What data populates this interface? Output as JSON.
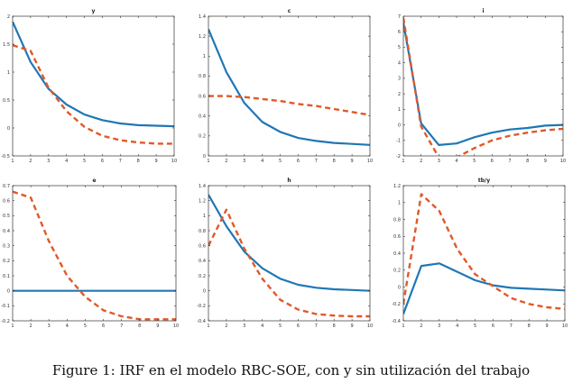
{
  "caption": "Figure 1: IRF en el modelo RBC-SOE, con y sin utilización del trabajo",
  "colors": {
    "solid": "#1f77b4",
    "dashed": "#e0592a",
    "axis": "#333333"
  },
  "chart_data": [
    {
      "type": "line",
      "title": "y",
      "x": [
        1,
        2,
        3,
        4,
        5,
        6,
        7,
        8,
        9,
        10
      ],
      "xticks": [
        1,
        2,
        3,
        4,
        5,
        6,
        7,
        8,
        9,
        10
      ],
      "ylim": [
        -0.5,
        2
      ],
      "yticks": [
        -0.5,
        0,
        0.5,
        1,
        1.5,
        2
      ],
      "series": [
        {
          "style": "solid",
          "values": [
            1.9,
            1.18,
            0.7,
            0.42,
            0.24,
            0.14,
            0.08,
            0.05,
            0.04,
            0.03
          ]
        },
        {
          "style": "dashed",
          "values": [
            1.48,
            1.38,
            0.72,
            0.3,
            0.02,
            -0.14,
            -0.22,
            -0.26,
            -0.28,
            -0.28
          ]
        }
      ]
    },
    {
      "type": "line",
      "title": "c",
      "x": [
        1,
        2,
        3,
        4,
        5,
        6,
        7,
        8,
        9,
        10
      ],
      "xticks": [
        1,
        2,
        3,
        4,
        5,
        6,
        7,
        8,
        9,
        10
      ],
      "ylim": [
        0,
        1.4
      ],
      "yticks": [
        0,
        0.2,
        0.4,
        0.6,
        0.8,
        1,
        1.2,
        1.4
      ],
      "series": [
        {
          "style": "solid",
          "values": [
            1.27,
            0.84,
            0.53,
            0.34,
            0.24,
            0.18,
            0.15,
            0.13,
            0.12,
            0.11
          ]
        },
        {
          "style": "dashed",
          "values": [
            0.6,
            0.6,
            0.59,
            0.57,
            0.55,
            0.52,
            0.5,
            0.47,
            0.44,
            0.41
          ]
        }
      ]
    },
    {
      "type": "line",
      "title": "i",
      "x": [
        1,
        2,
        3,
        4,
        5,
        6,
        7,
        8,
        9,
        10
      ],
      "xticks": [
        1,
        2,
        3,
        4,
        5,
        6,
        7,
        8,
        9,
        10
      ],
      "ylim": [
        -2,
        7
      ],
      "yticks": [
        -2,
        -1,
        0,
        1,
        2,
        3,
        4,
        5,
        6,
        7
      ],
      "series": [
        {
          "style": "solid",
          "values": [
            6.6,
            0.1,
            -1.3,
            -1.2,
            -0.8,
            -0.5,
            -0.3,
            -0.2,
            -0.05,
            0
          ]
        },
        {
          "style": "dashed",
          "values": [
            6.9,
            -0.1,
            -2.1,
            -2.1,
            -1.5,
            -1.0,
            -0.7,
            -0.5,
            -0.35,
            -0.25
          ]
        }
      ]
    },
    {
      "type": "line",
      "title": "e",
      "x": [
        1,
        2,
        3,
        4,
        5,
        6,
        7,
        8,
        9,
        10
      ],
      "xticks": [
        1,
        2,
        3,
        4,
        5,
        6,
        7,
        8,
        9,
        10
      ],
      "ylim": [
        -0.2,
        0.7
      ],
      "yticks": [
        -0.2,
        -0.1,
        0,
        0.1,
        0.2,
        0.3,
        0.4,
        0.5,
        0.6,
        0.7
      ],
      "series": [
        {
          "style": "solid",
          "values": [
            0,
            0,
            0,
            0,
            0,
            0,
            0,
            0,
            0,
            0
          ]
        },
        {
          "style": "dashed",
          "values": [
            0.66,
            0.62,
            0.33,
            0.1,
            -0.04,
            -0.13,
            -0.17,
            -0.19,
            -0.19,
            -0.19
          ]
        }
      ]
    },
    {
      "type": "line",
      "title": "h",
      "x": [
        1,
        2,
        3,
        4,
        5,
        6,
        7,
        8,
        9,
        10
      ],
      "xticks": [
        1,
        2,
        3,
        4,
        5,
        6,
        7,
        8,
        9,
        10
      ],
      "ylim": [
        -0.4,
        1.4
      ],
      "yticks": [
        -0.4,
        -0.2,
        0,
        0.2,
        0.4,
        0.6,
        0.8,
        1,
        1.2,
        1.4
      ],
      "series": [
        {
          "style": "solid",
          "values": [
            1.28,
            0.86,
            0.52,
            0.3,
            0.16,
            0.08,
            0.04,
            0.02,
            0.01,
            0.0
          ]
        },
        {
          "style": "dashed",
          "values": [
            0.6,
            1.08,
            0.56,
            0.16,
            -0.12,
            -0.25,
            -0.31,
            -0.33,
            -0.34,
            -0.34
          ]
        }
      ]
    },
    {
      "type": "line",
      "title": "tb/y",
      "x": [
        1,
        2,
        3,
        4,
        5,
        6,
        7,
        8,
        9,
        10
      ],
      "xticks": [
        1,
        2,
        3,
        4,
        5,
        6,
        7,
        8,
        9,
        10
      ],
      "ylim": [
        -0.4,
        1.2
      ],
      "yticks": [
        -0.4,
        -0.2,
        0,
        0.2,
        0.4,
        0.6,
        0.8,
        1,
        1.2
      ],
      "series": [
        {
          "style": "solid",
          "values": [
            -0.32,
            0.25,
            0.28,
            0.18,
            0.08,
            0.02,
            -0.01,
            -0.02,
            -0.03,
            -0.04
          ]
        },
        {
          "style": "dashed",
          "values": [
            -0.2,
            1.1,
            0.9,
            0.45,
            0.15,
            0.01,
            -0.13,
            -0.2,
            -0.24,
            -0.26
          ]
        }
      ]
    }
  ]
}
